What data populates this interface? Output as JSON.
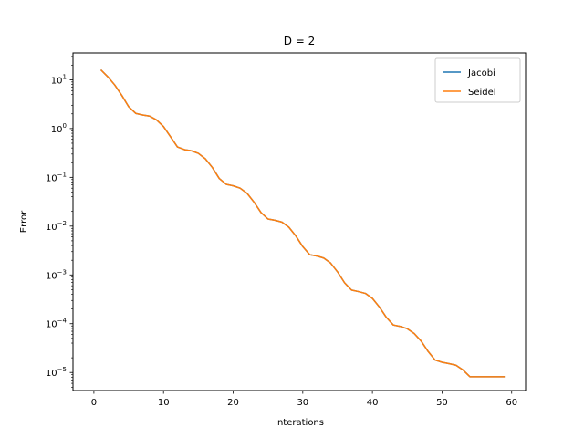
{
  "chart_data": {
    "type": "line",
    "title": "D = 2",
    "xlabel": "Interations",
    "ylabel": "Error",
    "yscale": "log",
    "xlim": [
      -3,
      62
    ],
    "ylim_log10": [
      -5.37,
      1.55
    ],
    "xticks": [
      0,
      10,
      20,
      30,
      40,
      50,
      60
    ],
    "xtick_labels": [
      "0",
      "10",
      "20",
      "30",
      "40",
      "50",
      "60"
    ],
    "ytick_exponents": [
      1,
      0,
      -1,
      -2,
      -3,
      -4,
      -5
    ],
    "ytick_labels": [
      "10",
      "10",
      "10",
      "10",
      "10",
      "10",
      "10"
    ],
    "ytick_superscripts": [
      "1",
      "0",
      "−1",
      "−2",
      "−3",
      "−4",
      "−5"
    ],
    "grid": false,
    "legend_placement": "top-right",
    "x": [
      1,
      2,
      3,
      4,
      5,
      6,
      7,
      8,
      9,
      10,
      11,
      12,
      13,
      14,
      15,
      16,
      17,
      18,
      19,
      20,
      21,
      22,
      23,
      24,
      25,
      26,
      27,
      28,
      29,
      30,
      31,
      32,
      33,
      34,
      35,
      36,
      37,
      38,
      39,
      40,
      41,
      42,
      43,
      44,
      45,
      46,
      47,
      48,
      49,
      50,
      51,
      52,
      53,
      54,
      55,
      56,
      57,
      58,
      59
    ],
    "series": [
      {
        "name": "Jacobi",
        "color": "#1f77b4",
        "values": [
          16,
          11.5,
          7.8,
          4.8,
          2.8,
          2.05,
          1.9,
          1.8,
          1.5,
          1.1,
          0.68,
          0.42,
          0.37,
          0.35,
          0.31,
          0.24,
          0.16,
          0.095,
          0.072,
          0.067,
          0.06,
          0.047,
          0.031,
          0.019,
          0.014,
          0.0132,
          0.0121,
          0.0095,
          0.0063,
          0.0038,
          0.0026,
          0.00245,
          0.00222,
          0.00175,
          0.00115,
          0.00069,
          0.00049,
          0.000455,
          0.000418,
          0.00033,
          0.00022,
          0.000135,
          9.4e-05,
          8.8e-05,
          7.9e-05,
          6.3e-05,
          4.4e-05,
          2.7e-05,
          1.8e-05,
          1.62e-05,
          1.52e-05,
          1.41e-05,
          1.13e-05,
          8.2e-06,
          8.2e-06,
          8.2e-06,
          8.2e-06,
          8.2e-06,
          8.2e-06
        ]
      },
      {
        "name": "Seidel",
        "color": "#ff7f0e",
        "values": [
          16,
          11.5,
          7.8,
          4.8,
          2.8,
          2.05,
          1.9,
          1.8,
          1.5,
          1.1,
          0.68,
          0.42,
          0.37,
          0.35,
          0.31,
          0.24,
          0.16,
          0.095,
          0.072,
          0.067,
          0.06,
          0.047,
          0.031,
          0.019,
          0.014,
          0.0132,
          0.0121,
          0.0095,
          0.0063,
          0.0038,
          0.0026,
          0.00245,
          0.00222,
          0.00175,
          0.00115,
          0.00069,
          0.00049,
          0.000455,
          0.000418,
          0.00033,
          0.00022,
          0.000135,
          9.4e-05,
          8.8e-05,
          7.9e-05,
          6.3e-05,
          4.4e-05,
          2.7e-05,
          1.8e-05,
          1.62e-05,
          1.52e-05,
          1.41e-05,
          1.13e-05,
          8.2e-06,
          8.2e-06,
          8.2e-06,
          8.2e-06,
          8.2e-06,
          8.2e-06
        ]
      }
    ]
  }
}
